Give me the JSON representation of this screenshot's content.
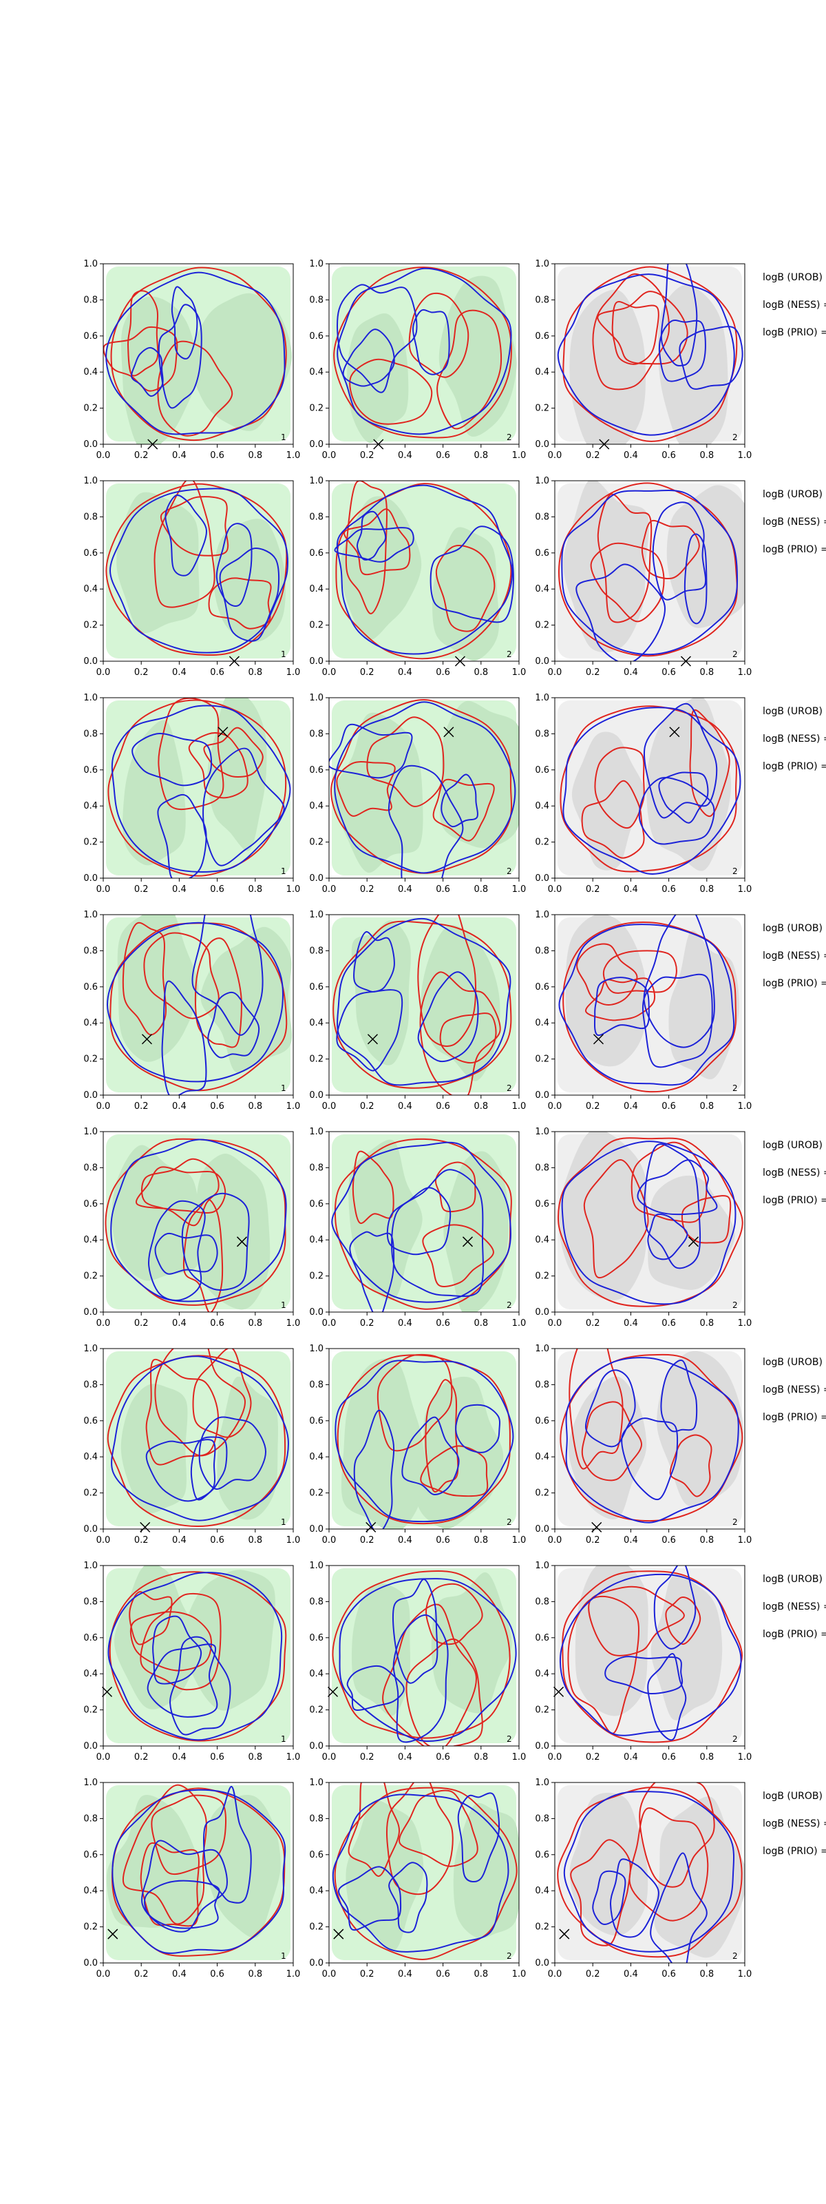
{
  "chart_data": {
    "type": "contour",
    "grid": {
      "rows": 8,
      "cols": 3
    },
    "xlim": [
      0,
      1
    ],
    "ylim": [
      0,
      1
    ],
    "x_ticks": [
      "0.0",
      "0.2",
      "0.4",
      "0.6",
      "0.8",
      "1.0"
    ],
    "y_ticks": [
      "0.0",
      "0.2",
      "0.4",
      "0.6",
      "0.8",
      "1.0"
    ],
    "legend_lines": [
      "logB (UROB) =",
      "logB (NESS) =",
      "logB (PRIO) ="
    ],
    "colors": {
      "green_fill_light": "#d6f5d6",
      "green_fill_mid": "#c3e6c3",
      "gray_fill_light": "#efefef",
      "gray_fill_mid": "#dcdcdc",
      "contour_red": "#e0251f",
      "contour_blue": "#1c22d8",
      "marker": "#000000"
    },
    "rows": [
      {
        "marker": {
          "x": 0.26,
          "y": 0.0
        },
        "corner_labels": [
          "1",
          "2",
          "2"
        ]
      },
      {
        "marker": {
          "x": 0.69,
          "y": 0.0
        },
        "corner_labels": [
          "1",
          "2",
          "2"
        ]
      },
      {
        "marker": {
          "x": 0.63,
          "y": 0.81
        },
        "corner_labels": [
          "1",
          "2",
          "2"
        ]
      },
      {
        "marker": {
          "x": 0.23,
          "y": 0.31
        },
        "corner_labels": [
          "1",
          "2",
          "2"
        ]
      },
      {
        "marker": {
          "x": 0.73,
          "y": 0.39
        },
        "corner_labels": [
          "1",
          "2",
          "2"
        ]
      },
      {
        "marker": {
          "x": 0.22,
          "y": 0.01
        },
        "corner_labels": [
          "1",
          "2",
          "2"
        ]
      },
      {
        "marker": {
          "x": 0.02,
          "y": 0.3
        },
        "corner_labels": [
          "1",
          "2",
          "2"
        ]
      },
      {
        "marker": {
          "x": 0.05,
          "y": 0.16
        },
        "corner_labels": [
          "1",
          "2",
          "2"
        ]
      }
    ]
  }
}
